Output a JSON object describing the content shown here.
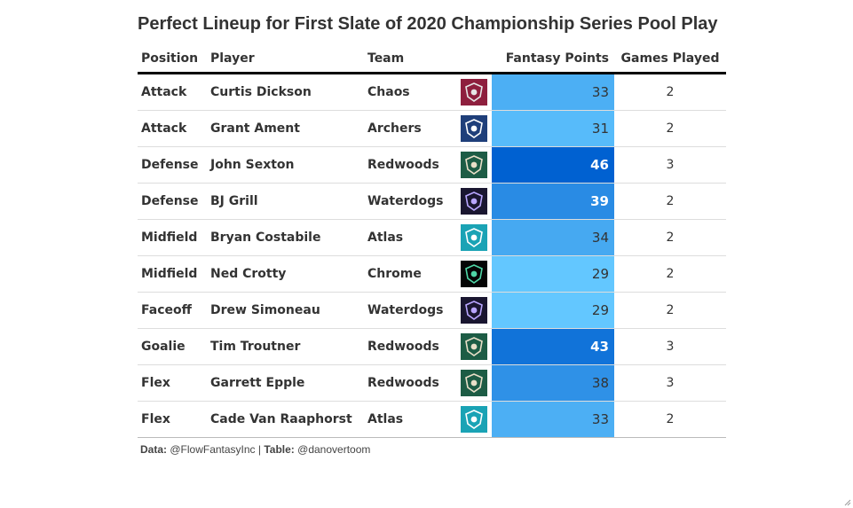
{
  "title": "Perfect Lineup for First Slate of 2020 Championship Series Pool Play",
  "columns": {
    "position": "Position",
    "player": "Player",
    "team": "Team",
    "points": "Fantasy Points",
    "games": "Games Played"
  },
  "teams": {
    "Chaos": {
      "bg": "#8e1f3e",
      "fg": "#e6e6e6",
      "icon": "chaos-logo-icon"
    },
    "Archers": {
      "bg": "#1f3f7a",
      "fg": "#ffffff",
      "icon": "archers-logo-icon"
    },
    "Redwoods": {
      "bg": "#1d5c45",
      "fg": "#e9dfc8",
      "icon": "redwoods-logo-icon"
    },
    "Waterdogs": {
      "bg": "#1a1630",
      "fg": "#b9a6ff",
      "icon": "waterdogs-logo-icon"
    },
    "Atlas": {
      "bg": "#1aa3b5",
      "fg": "#ffffff",
      "icon": "atlas-logo-icon"
    },
    "Chrome": {
      "bg": "#050505",
      "fg": "#4fd6a6",
      "icon": "chrome-logo-icon"
    }
  },
  "rows": [
    {
      "position": "Attack",
      "player": "Curtis Dickson",
      "team": "Chaos",
      "points": 33,
      "games": 2
    },
    {
      "position": "Attack",
      "player": "Grant Ament",
      "team": "Archers",
      "points": 31,
      "games": 2
    },
    {
      "position": "Defense",
      "player": "John Sexton",
      "team": "Redwoods",
      "points": 46,
      "games": 3
    },
    {
      "position": "Defense",
      "player": "BJ Grill",
      "team": "Waterdogs",
      "points": 39,
      "games": 2
    },
    {
      "position": "Midfield",
      "player": "Bryan Costabile",
      "team": "Atlas",
      "points": 34,
      "games": 2
    },
    {
      "position": "Midfield",
      "player": "Ned Crotty",
      "team": "Chrome",
      "points": 29,
      "games": 2
    },
    {
      "position": "Faceoff",
      "player": "Drew Simoneau",
      "team": "Waterdogs",
      "points": 29,
      "games": 2
    },
    {
      "position": "Goalie",
      "player": "Tim Troutner",
      "team": "Redwoods",
      "points": 43,
      "games": 3
    },
    {
      "position": "Flex",
      "player": "Garrett Epple",
      "team": "Redwoods",
      "points": 38,
      "games": 3
    },
    {
      "position": "Flex",
      "player": "Cade Van Raaphorst",
      "team": "Atlas",
      "points": 33,
      "games": 2
    }
  ],
  "color_scale": {
    "min": 29,
    "max": 46,
    "low_color": "#63c7ff",
    "high_color": "#0061d1",
    "light_text": "#ffffff",
    "dark_text": "#333333"
  },
  "source": {
    "data_label": "Data:",
    "data_value": " @FlowFantasyInc | ",
    "table_label": "Table:",
    "table_value": " @danovertoom"
  }
}
